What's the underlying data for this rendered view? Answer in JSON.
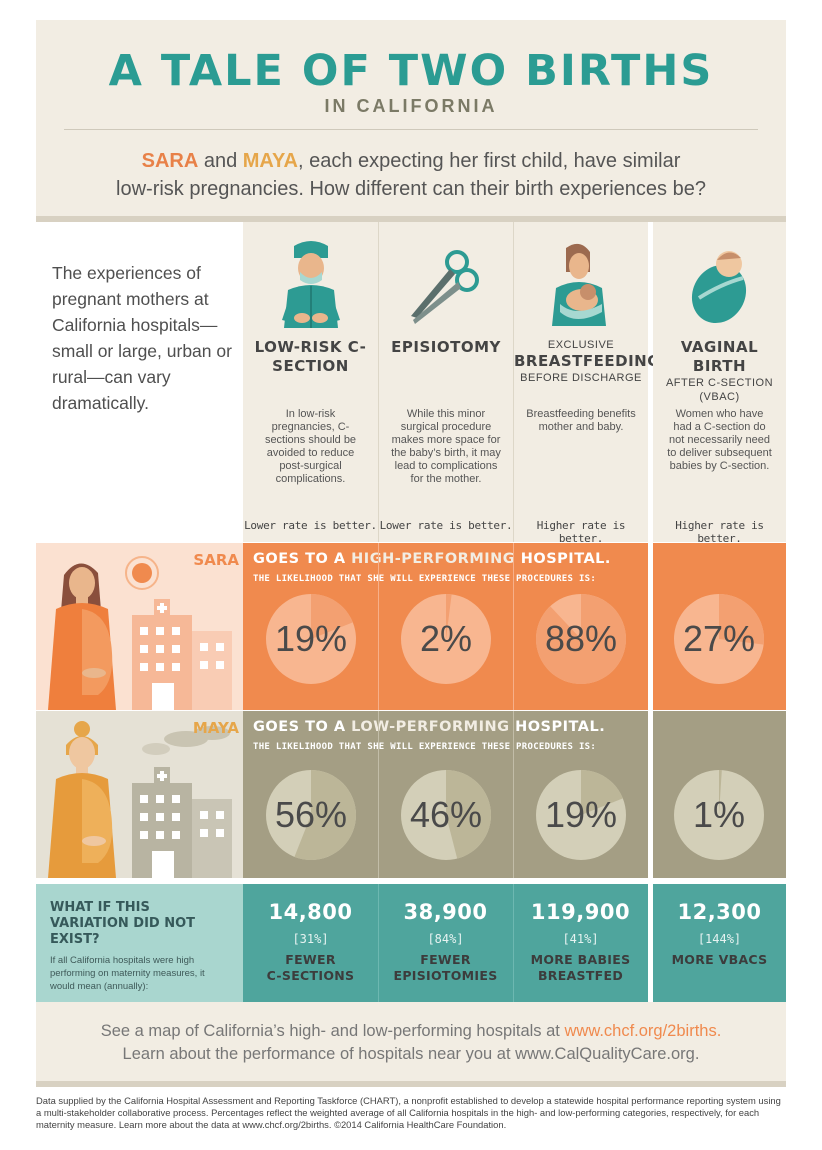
{
  "title": "A TALE OF TWO BIRTHS",
  "subtitle": "IN CALIFORNIA",
  "intro": {
    "name1": "SARA",
    "and": " and ",
    "name2": "MAYA",
    "line1_rest": ", each expecting her first child, have similar",
    "line2": "low-risk pregnancies. How different can their birth experiences be?"
  },
  "left_text": "The experiences of pregnant mothers at California hospitals—small or large, urban or rural—can vary dramatically.",
  "measures": [
    {
      "icon": "surgeon-icon",
      "pre": "",
      "heading": "LOW-RISK C-SECTION",
      "post": "",
      "desc": "In low-risk pregnancies, C-sections should be avoided to reduce post-surgical complications.",
      "better": "Lower rate is better."
    },
    {
      "icon": "scissors-icon",
      "pre": "",
      "heading": "EPISIOTOMY",
      "post": "",
      "desc": "While this minor surgical procedure makes more space for the baby’s birth, it may lead to complications for the mother.",
      "better": "Lower rate is better."
    },
    {
      "icon": "breastfeeding-icon",
      "pre": "EXCLUSIVE",
      "heading": "BREASTFEEDING",
      "post": "BEFORE DISCHARGE",
      "desc": "Breastfeeding benefits mother and baby.",
      "better": "Higher rate is better."
    },
    {
      "icon": "swaddled-baby-icon",
      "pre": "",
      "heading": "VAGINAL BIRTH",
      "post": "AFTER C-SECTION (VBAC)",
      "desc": "Women who have had a C-section do not necessarily need to deliver subsequent babies by C-section.",
      "better": "Higher rate is better."
    }
  ],
  "sara": {
    "name": "SARA",
    "goes_pre": "GOES TO A ",
    "goes_highlight": "HIGH-PERFORMING",
    "goes_post": " HOSPITAL.",
    "likelihood": "THE LIKELIHOOD THAT SHE WILL EXPERIENCE THESE PROCEDURES IS:",
    "values": [
      19,
      2,
      88,
      27
    ],
    "labels": [
      "19%",
      "2%",
      "88%",
      "27%"
    ]
  },
  "maya": {
    "name": "MAYA",
    "goes_pre": "GOES TO A ",
    "goes_highlight": "LOW-PERFORMING",
    "goes_post": " HOSPITAL.",
    "likelihood": "THE LIKELIHOOD THAT SHE WILL EXPERIENCE THESE PROCEDURES IS:",
    "values": [
      56,
      46,
      19,
      1
    ],
    "labels": [
      "56%",
      "46%",
      "19%",
      "1%"
    ]
  },
  "variation": {
    "title": "WHAT IF THIS VARIATION DID NOT EXIST?",
    "desc": "If all California hospitals were high performing on maternity measures, it would mean (annually):",
    "items": [
      {
        "num": "14,800",
        "pct": "[31%]",
        "label1": "FEWER",
        "label2": "C-SECTIONS"
      },
      {
        "num": "38,900",
        "pct": "[84%]",
        "label1": "FEWER",
        "label2": "EPISIOTOMIES"
      },
      {
        "num": "119,900",
        "pct": "[41%]",
        "label1": "MORE BABIES",
        "label2": "BREASTFED"
      },
      {
        "num": "12,300",
        "pct": "[144%]",
        "label1": "MORE VBACS",
        "label2": ""
      }
    ]
  },
  "links": {
    "line1_text": "See a map of California’s high- and low-performing hospitals at ",
    "line1_url": "www.chcf.org/2births.",
    "line2": "Learn about the performance of hospitals near you at www.CalQualityCare.org."
  },
  "footer": "Data supplied by the California Hospital Assessment and Reporting Taskforce (CHART), a nonprofit established to develop a statewide hospital performance reporting system using a multi-stakeholder collaborative process. Percentages reflect the weighted average of all California hospitals in the high- and low-performing categories, respectively, for each maternity measure. Learn more about the data at www.chcf.org/2births. ©2014 California HealthCare Foundation.",
  "colors": {
    "teal": "#2b9c93",
    "sara_orange": "#f08a4e",
    "maya_gold": "#e6a64a",
    "maya_band": "#a49e84",
    "variation_teal": "#4fa59d",
    "cream": "#f2ede3"
  }
}
